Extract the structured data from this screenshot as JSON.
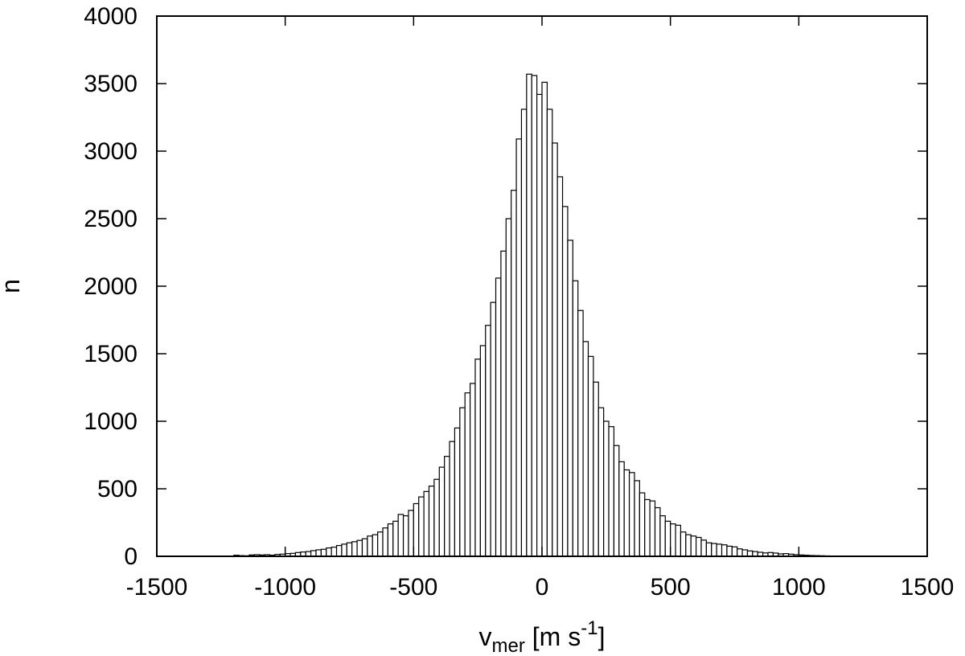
{
  "chart_data": {
    "type": "bar",
    "subtype": "histogram",
    "bin_width": 20,
    "xlim": [
      -1500,
      1500
    ],
    "ylim": [
      0,
      4000
    ],
    "xticks": [
      "-1500",
      "-1000",
      "-500",
      "0",
      "500",
      "1000",
      "1500"
    ],
    "yticks": [
      "0",
      "500",
      "1000",
      "1500",
      "2000",
      "2500",
      "3000",
      "3500",
      "4000"
    ],
    "xlabel": {
      "base": "v",
      "sub": "mer",
      "unit_start": " [m s",
      "sup": "-1",
      "unit_end": "]"
    },
    "ylabel": "n",
    "grid": false,
    "bin_centers": [
      -1190,
      -1170,
      -1150,
      -1130,
      -1110,
      -1090,
      -1070,
      -1050,
      -1030,
      -1010,
      -990,
      -970,
      -950,
      -930,
      -910,
      -890,
      -870,
      -850,
      -830,
      -810,
      -790,
      -770,
      -750,
      -730,
      -710,
      -690,
      -670,
      -650,
      -630,
      -610,
      -590,
      -570,
      -550,
      -530,
      -510,
      -490,
      -470,
      -450,
      -430,
      -410,
      -390,
      -370,
      -350,
      -330,
      -310,
      -290,
      -270,
      -250,
      -230,
      -210,
      -190,
      -170,
      -150,
      -130,
      -110,
      -90,
      -70,
      -50,
      -30,
      -10,
      10,
      30,
      50,
      70,
      90,
      110,
      130,
      150,
      170,
      190,
      210,
      230,
      250,
      270,
      290,
      310,
      330,
      350,
      370,
      390,
      410,
      430,
      450,
      470,
      490,
      510,
      530,
      550,
      570,
      590,
      610,
      630,
      650,
      670,
      690,
      710,
      730,
      750,
      770,
      790,
      810,
      830,
      850,
      870,
      890,
      910,
      930,
      950,
      970,
      990,
      1010,
      1030,
      1050,
      1070,
      1090,
      1110,
      1130,
      1150,
      1170
    ],
    "values": [
      8,
      5,
      4,
      10,
      12,
      10,
      12,
      8,
      14,
      16,
      20,
      22,
      28,
      32,
      35,
      42,
      48,
      52,
      62,
      68,
      80,
      90,
      100,
      108,
      118,
      130,
      150,
      160,
      180,
      210,
      240,
      260,
      310,
      300,
      340,
      390,
      440,
      480,
      520,
      570,
      660,
      740,
      850,
      950,
      1100,
      1210,
      1280,
      1460,
      1560,
      1710,
      1880,
      2060,
      2260,
      2500,
      2710,
      3090,
      3310,
      3570,
      3560,
      3420,
      3510,
      3310,
      3060,
      2810,
      2590,
      2340,
      2040,
      1820,
      1590,
      1480,
      1290,
      1100,
      1000,
      960,
      820,
      700,
      640,
      620,
      560,
      470,
      420,
      410,
      360,
      300,
      260,
      240,
      230,
      180,
      160,
      150,
      140,
      120,
      100,
      95,
      90,
      85,
      75,
      70,
      55,
      48,
      40,
      35,
      30,
      25,
      28,
      24,
      18,
      20,
      16,
      12,
      10,
      8,
      6,
      5,
      4,
      3,
      2,
      1,
      1
    ]
  }
}
